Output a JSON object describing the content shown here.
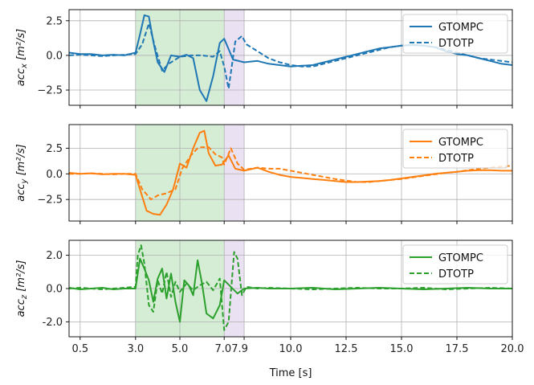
{
  "chart_data": [
    {
      "type": "line",
      "ylabel": "acc_x [m²/s]",
      "ylabel_main": "acc",
      "ylabel_sub": "x",
      "ylabel_unit": " [m²/s]",
      "xlabel": "",
      "xlim": [
        0.0,
        20.0
      ],
      "ylim": [
        -3.6,
        3.3
      ],
      "yticks": [
        2.5,
        0.0,
        -2.5
      ],
      "ytick_labels": [
        "2.5",
        "0.0",
        "−2.5"
      ],
      "grid": true,
      "legend_position": "top-right",
      "color": "#1f77b4",
      "shaded_regions": [
        {
          "x0": 3.0,
          "x1": 7.0,
          "color": "#2ca02c"
        },
        {
          "x0": 7.0,
          "x1": 7.9,
          "color": "#9467bd"
        }
      ],
      "series": [
        {
          "name": "GTOMPC",
          "style": "solid",
          "x": [
            0.0,
            0.5,
            1.0,
            1.5,
            2.0,
            2.5,
            3.0,
            3.2,
            3.4,
            3.6,
            3.8,
            4.0,
            4.3,
            4.6,
            5.0,
            5.3,
            5.6,
            5.9,
            6.2,
            6.5,
            6.8,
            7.0,
            7.4,
            7.9,
            8.5,
            9.0,
            9.5,
            10.0,
            10.5,
            11.0,
            11.5,
            12.0,
            12.5,
            13.0,
            13.5,
            14.0,
            14.5,
            15.0,
            15.5,
            16.0,
            16.5,
            17.0,
            17.5,
            18.0,
            18.5,
            19.0,
            19.5,
            20.0
          ],
          "y": [
            0.2,
            0.1,
            0.1,
            0.0,
            0.05,
            0.0,
            0.2,
            1.5,
            2.9,
            2.8,
            1.0,
            -0.5,
            -1.2,
            0.0,
            -0.1,
            0.05,
            -0.2,
            -2.5,
            -3.3,
            -1.5,
            0.9,
            1.2,
            -0.3,
            -0.5,
            -0.4,
            -0.6,
            -0.7,
            -0.8,
            -0.75,
            -0.7,
            -0.5,
            -0.3,
            -0.1,
            0.1,
            0.3,
            0.5,
            0.6,
            0.7,
            0.75,
            0.7,
            0.6,
            0.3,
            0.1,
            0.0,
            -0.2,
            -0.4,
            -0.6,
            -0.7
          ]
        },
        {
          "name": "DTOTP",
          "style": "dashed",
          "x": [
            0.0,
            0.5,
            1.0,
            1.5,
            2.0,
            2.5,
            3.0,
            3.3,
            3.6,
            3.9,
            4.2,
            4.5,
            4.8,
            5.0,
            5.5,
            6.0,
            6.5,
            6.8,
            7.0,
            7.2,
            7.5,
            7.8,
            8.0,
            8.5,
            9.0,
            9.5,
            10.0,
            10.5,
            11.0,
            11.5,
            12.0,
            12.5,
            13.0,
            13.5,
            14.0,
            14.5,
            15.0,
            15.5,
            16.0,
            16.5,
            17.0,
            17.5,
            18.0,
            18.5,
            19.0,
            19.5,
            20.0
          ],
          "y": [
            0.0,
            0.05,
            0.0,
            -0.05,
            0.0,
            0.05,
            0.1,
            0.8,
            2.3,
            0.5,
            -1.1,
            -0.6,
            -0.3,
            -0.1,
            0.0,
            0.0,
            -0.1,
            0.3,
            -0.8,
            -2.4,
            1.0,
            1.4,
            0.8,
            0.3,
            -0.2,
            -0.5,
            -0.7,
            -0.8,
            -0.8,
            -0.6,
            -0.4,
            -0.2,
            0.0,
            0.2,
            0.4,
            0.6,
            0.7,
            0.75,
            0.7,
            0.6,
            0.4,
            0.2,
            0.0,
            -0.2,
            -0.3,
            -0.4,
            -0.5
          ]
        }
      ]
    },
    {
      "type": "line",
      "ylabel": "acc_y [m²/s]",
      "ylabel_main": "acc",
      "ylabel_sub": "y",
      "ylabel_unit": " [m²/s]",
      "xlabel": "",
      "xlim": [
        0.0,
        20.0
      ],
      "ylim": [
        -4.6,
        4.8
      ],
      "yticks": [
        2.5,
        0.0,
        -2.5
      ],
      "ytick_labels": [
        "2.5",
        "0.0",
        "−2.5"
      ],
      "grid": true,
      "legend_position": "top-right",
      "color": "#ff7f0e",
      "shaded_regions": [
        {
          "x0": 3.0,
          "x1": 7.0,
          "color": "#2ca02c"
        },
        {
          "x0": 7.0,
          "x1": 7.9,
          "color": "#9467bd"
        }
      ],
      "series": [
        {
          "name": "GTOMPC",
          "style": "solid",
          "x": [
            0.0,
            0.5,
            1.0,
            1.5,
            2.0,
            2.5,
            3.0,
            3.2,
            3.5,
            3.8,
            4.1,
            4.4,
            4.7,
            5.0,
            5.3,
            5.6,
            5.9,
            6.1,
            6.3,
            6.6,
            6.9,
            7.2,
            7.5,
            7.9,
            8.5,
            9.0,
            9.5,
            10.0,
            10.5,
            11.0,
            11.5,
            12.0,
            12.5,
            13.0,
            13.5,
            14.0,
            14.5,
            15.0,
            15.5,
            16.0,
            16.5,
            17.0,
            17.5,
            18.0,
            18.5,
            19.0,
            19.5,
            20.0
          ],
          "y": [
            0.1,
            0.0,
            0.05,
            -0.05,
            0.0,
            0.0,
            -0.1,
            -1.5,
            -3.6,
            -3.9,
            -4.0,
            -3.0,
            -1.5,
            1.0,
            0.6,
            2.5,
            4.0,
            4.2,
            2.0,
            0.8,
            0.9,
            1.8,
            0.5,
            0.3,
            0.6,
            0.2,
            -0.1,
            -0.3,
            -0.4,
            -0.5,
            -0.6,
            -0.7,
            -0.8,
            -0.8,
            -0.75,
            -0.7,
            -0.6,
            -0.45,
            -0.3,
            -0.15,
            0.0,
            0.1,
            0.2,
            0.3,
            0.35,
            0.35,
            0.3,
            0.3
          ]
        },
        {
          "name": "DTOTP",
          "style": "dashed",
          "x": [
            0.0,
            0.5,
            1.0,
            1.5,
            2.0,
            2.5,
            3.0,
            3.3,
            3.7,
            4.0,
            4.4,
            4.8,
            5.1,
            5.5,
            5.8,
            6.0,
            6.3,
            6.6,
            6.9,
            7.0,
            7.3,
            7.6,
            7.9,
            8.5,
            9.0,
            9.5,
            10.0,
            10.5,
            11.0,
            11.5,
            12.0,
            12.5,
            13.0,
            13.5,
            14.0,
            14.5,
            15.0,
            15.5,
            16.0,
            16.5,
            17.0,
            17.5,
            18.0,
            18.5,
            19.0,
            19.5,
            20.0
          ],
          "y": [
            0.0,
            0.0,
            0.05,
            0.0,
            -0.05,
            0.0,
            0.0,
            -1.5,
            -2.5,
            -2.1,
            -1.9,
            -1.5,
            0.5,
            1.8,
            2.5,
            2.6,
            2.6,
            1.9,
            1.6,
            0.9,
            2.5,
            1.0,
            0.4,
            0.6,
            0.5,
            0.5,
            0.3,
            0.1,
            -0.1,
            -0.3,
            -0.5,
            -0.65,
            -0.8,
            -0.8,
            -0.7,
            -0.6,
            -0.5,
            -0.35,
            -0.2,
            -0.05,
            0.1,
            0.2,
            0.35,
            0.5,
            0.6,
            0.7,
            0.8
          ]
        }
      ]
    },
    {
      "type": "line",
      "ylabel": "acc_z [m²/s]",
      "ylabel_main": "acc",
      "ylabel_sub": "z",
      "ylabel_unit": " [m²/s]",
      "xlabel": "Time [s]",
      "xlim": [
        0.0,
        20.0
      ],
      "ylim": [
        -2.9,
        2.9
      ],
      "yticks": [
        2.0,
        0.0,
        -2.0
      ],
      "ytick_labels": [
        "2.0",
        "0.0",
        "-2.0"
      ],
      "xticks": [
        0.5,
        3.0,
        5.0,
        7.0,
        7.9,
        10.0,
        12.5,
        15.0,
        17.5,
        20.0
      ],
      "xtick_labels": [
        "0.5",
        "3.0",
        "5.0",
        "7.07.9",
        "",
        "10.0",
        "12.5",
        "15.0",
        "17.5",
        "20.0"
      ],
      "grid": true,
      "legend_position": "top-right",
      "color": "#2ca02c",
      "shaded_regions": [
        {
          "x0": 3.0,
          "x1": 7.0,
          "color": "#2ca02c"
        },
        {
          "x0": 7.0,
          "x1": 7.9,
          "color": "#9467bd"
        }
      ],
      "series": [
        {
          "name": "GTOMPC",
          "style": "solid",
          "x": [
            0.0,
            0.5,
            1.0,
            1.5,
            2.0,
            2.5,
            3.0,
            3.2,
            3.4,
            3.6,
            3.8,
            4.0,
            4.2,
            4.4,
            4.6,
            4.8,
            5.0,
            5.2,
            5.4,
            5.6,
            5.8,
            6.0,
            6.2,
            6.5,
            6.8,
            7.0,
            7.3,
            7.6,
            7.9,
            8.5,
            9.0,
            10.0,
            11.0,
            12.0,
            13.0,
            14.0,
            15.0,
            16.0,
            17.0,
            18.0,
            19.0,
            20.0
          ],
          "y": [
            0.05,
            -0.05,
            0.0,
            0.05,
            -0.05,
            0.0,
            0.0,
            1.8,
            1.2,
            0.5,
            -0.8,
            0.6,
            1.2,
            -0.6,
            0.9,
            -0.8,
            -2.0,
            0.5,
            0.2,
            -0.4,
            1.7,
            0.3,
            -1.5,
            -1.8,
            -1.0,
            0.5,
            0.1,
            -0.3,
            0.0,
            0.05,
            0.0,
            0.0,
            0.05,
            -0.05,
            0.0,
            0.05,
            0.0,
            -0.05,
            0.0,
            0.05,
            0.0,
            0.0
          ]
        },
        {
          "name": "DTOTP",
          "style": "dashed",
          "x": [
            0.0,
            0.5,
            1.0,
            1.5,
            2.0,
            2.5,
            3.0,
            3.1,
            3.25,
            3.4,
            3.6,
            3.8,
            4.0,
            4.2,
            4.4,
            4.6,
            4.8,
            5.0,
            5.3,
            5.6,
            5.9,
            6.2,
            6.5,
            6.8,
            7.0,
            7.2,
            7.45,
            7.6,
            7.8,
            8.0,
            8.5,
            9.0,
            10.0,
            11.0,
            12.0,
            13.0,
            14.0,
            15.0,
            16.0,
            17.0,
            18.0,
            19.0,
            20.0
          ],
          "y": [
            0.0,
            0.05,
            0.0,
            -0.05,
            0.0,
            0.05,
            0.1,
            2.0,
            2.6,
            1.5,
            -1.0,
            -1.4,
            0.5,
            -0.3,
            1.0,
            -0.5,
            0.4,
            -0.2,
            0.3,
            -0.1,
            0.2,
            0.4,
            -0.1,
            0.6,
            -2.5,
            -2.0,
            2.2,
            1.8,
            -0.4,
            0.1,
            0.0,
            0.05,
            0.0,
            -0.05,
            0.0,
            0.05,
            0.0,
            0.0,
            0.05,
            -0.05,
            0.0,
            0.05,
            0.0
          ]
        }
      ]
    }
  ]
}
